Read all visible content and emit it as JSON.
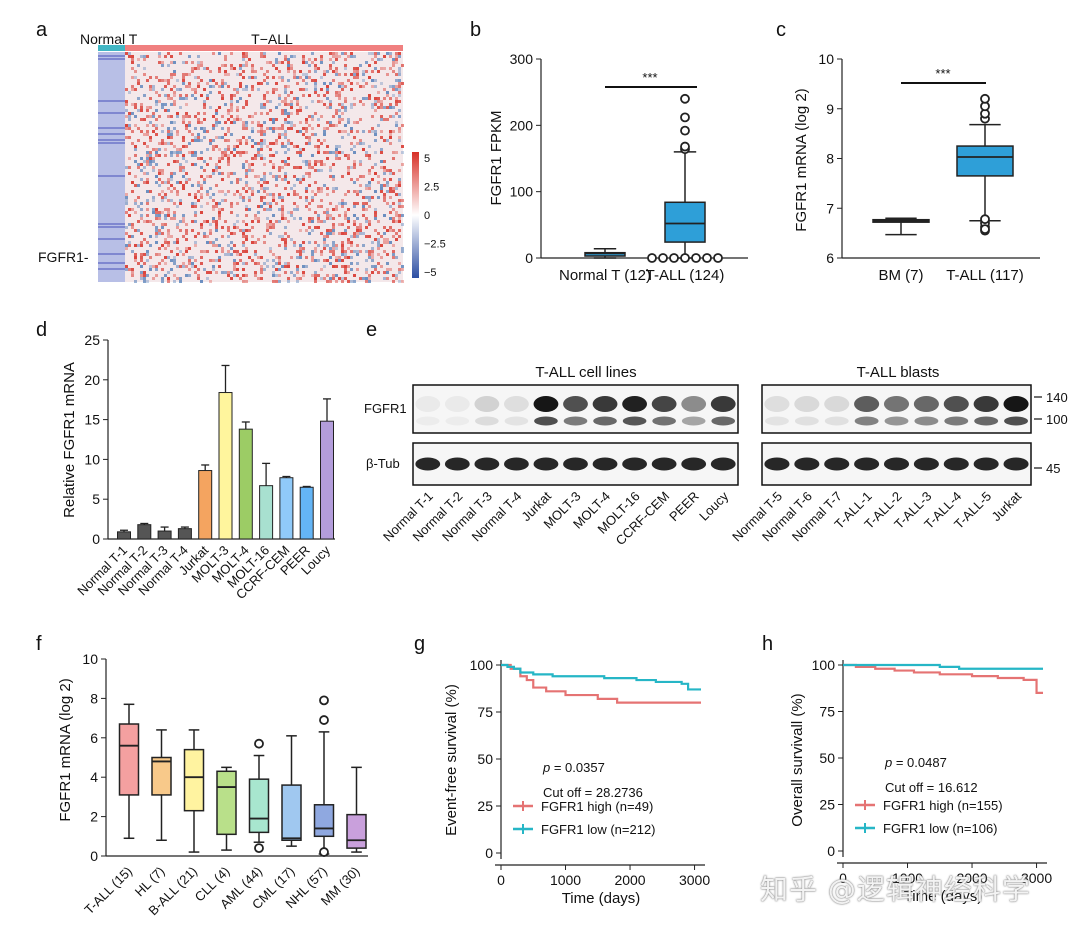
{
  "watermark": "知乎 @逻辑神经科学",
  "chart_data": [
    {
      "panel": "a",
      "type": "heatmap",
      "group_labels": [
        "Normal T",
        "T−ALL"
      ],
      "group_colors": [
        "#41b6c4",
        "#f08080"
      ],
      "row_label": "FGFR1-",
      "colorbar_ticks": [
        "5",
        "2.5",
        "0",
        "−2.5",
        "−5"
      ],
      "colorbar_range": [
        -5,
        5
      ]
    },
    {
      "panel": "b",
      "type": "box",
      "ylabel": "FGFR1 FPKM",
      "ylim": [
        0,
        300
      ],
      "yticks": [
        0,
        100,
        200,
        300
      ],
      "significance": "***",
      "groups": [
        {
          "label": "Normal T (12)",
          "min": 0,
          "q1": 3,
          "median": 7,
          "q3": 8,
          "max": 14,
          "outliers": []
        },
        {
          "label": "T-ALL (124)",
          "min": 0,
          "q1": 24,
          "median": 52,
          "q3": 84,
          "max": 160,
          "outliers": [
            164,
            168,
            192,
            212,
            240,
            0,
            0,
            0,
            0,
            0,
            0,
            0
          ]
        }
      ]
    },
    {
      "panel": "c",
      "type": "box",
      "ylabel": "FGFR1 mRNA (log 2)",
      "ylim": [
        6,
        10
      ],
      "yticks": [
        6,
        7,
        8,
        9,
        10
      ],
      "significance": "***",
      "groups": [
        {
          "label": "BM (7)",
          "min": 6.47,
          "q1": 6.72,
          "median": 6.75,
          "q3": 6.77,
          "max": 6.8,
          "outliers": []
        },
        {
          "label": "T-ALL (117)",
          "min": 6.75,
          "q1": 7.65,
          "median": 8.03,
          "q3": 8.25,
          "max": 8.68,
          "outliers": [
            8.8,
            8.9,
            9.05,
            9.2,
            6.55,
            6.62,
            6.7,
            6.58,
            6.78
          ]
        }
      ]
    },
    {
      "panel": "d",
      "type": "bar",
      "ylabel": "Relative FGFR1 mRNA",
      "ylim": [
        0,
        25
      ],
      "yticks": [
        0,
        5,
        10,
        15,
        20,
        25
      ],
      "categories": [
        "Normal T-1",
        "Normal T-2",
        "Normal T-3",
        "Normal T-4",
        "Jurkat",
        "MOLT-3",
        "MOLT-4",
        "MOLT-16",
        "CCRF-CEM",
        "PEER",
        "Loucy"
      ],
      "values": [
        0.9,
        1.8,
        1.0,
        1.3,
        8.6,
        18.4,
        13.8,
        6.7,
        7.7,
        6.5,
        14.8
      ],
      "errors": [
        0.2,
        0.15,
        0.5,
        0.2,
        0.7,
        3.4,
        0.9,
        2.8,
        0.15,
        0.1,
        2.8
      ],
      "colors": [
        "#555555",
        "#555555",
        "#555555",
        "#555555",
        "#f4a460",
        "#fff59d",
        "#9ccc65",
        "#a8e0d0",
        "#90caf9",
        "#64b5f6",
        "#b39ddb"
      ]
    },
    {
      "panel": "e",
      "type": "blot",
      "group1_title": "T-ALL cell lines",
      "group2_title": "T-ALL blasts",
      "row_labels": [
        "FGFR1",
        "β-Tub"
      ],
      "size_markers": [
        "140",
        "100",
        "45"
      ],
      "lanes1": [
        "Normal T-1",
        "Normal T-2",
        "Normal T-3",
        "Normal T-4",
        "Jurkat",
        "MOLT-3",
        "MOLT-4",
        "MOLT-16",
        "CCRF-CEM",
        "PEER",
        "Loucy"
      ],
      "lanes2": [
        "Normal T-5",
        "Normal T-6",
        "Normal T-7",
        "T-ALL-1",
        "T-ALL-2",
        "T-ALL-3",
        "T-ALL-4",
        "T-ALL-5",
        "Jurkat"
      ],
      "fgfr1_intensity1": [
        0.05,
        0.05,
        0.15,
        0.1,
        0.95,
        0.7,
        0.8,
        0.9,
        0.75,
        0.45,
        0.8
      ],
      "fgfr1_intensity2": [
        0.1,
        0.12,
        0.12,
        0.65,
        0.55,
        0.6,
        0.7,
        0.8,
        0.95
      ]
    },
    {
      "panel": "f",
      "type": "box",
      "ylabel": "FGFR1 mRNA (log 2)",
      "ylim": [
        0,
        10
      ],
      "yticks": [
        0,
        2,
        4,
        6,
        8,
        10
      ],
      "groups": [
        {
          "label": "T-ALL (15)",
          "min": 0.9,
          "q1": 3.1,
          "median": 5.6,
          "q3": 6.7,
          "max": 7.7,
          "outliers": [],
          "color": "#f4a0a0"
        },
        {
          "label": "HL (7)",
          "min": 0.8,
          "q1": 3.1,
          "median": 4.8,
          "q3": 5.0,
          "max": 6.4,
          "outliers": [],
          "color": "#f8c98a"
        },
        {
          "label": "B-ALL (21)",
          "min": 0.2,
          "q1": 2.3,
          "median": 4.0,
          "q3": 5.4,
          "max": 6.4,
          "outliers": [],
          "color": "#fff3a0"
        },
        {
          "label": "CLL (4)",
          "min": 0.3,
          "q1": 1.1,
          "median": 3.5,
          "q3": 4.3,
          "max": 4.5,
          "outliers": [],
          "color": "#b9e08a"
        },
        {
          "label": "AML (44)",
          "min": 0.7,
          "q1": 1.2,
          "median": 1.9,
          "q3": 3.9,
          "max": 5.1,
          "outliers": [
            5.7,
            0.4
          ],
          "color": "#a8e6cf"
        },
        {
          "label": "CML (17)",
          "min": 0.5,
          "q1": 0.8,
          "median": 0.9,
          "q3": 3.6,
          "max": 6.1,
          "outliers": [],
          "color": "#a0c8f0"
        },
        {
          "label": "NHL (57)",
          "min": 0.1,
          "q1": 1.0,
          "median": 1.4,
          "q3": 2.6,
          "max": 6.3,
          "outliers": [
            7.9,
            6.9,
            0.2
          ],
          "color": "#8fa8e0"
        },
        {
          "label": "MM (30)",
          "min": 0.2,
          "q1": 0.4,
          "median": 0.8,
          "q3": 2.1,
          "max": 4.5,
          "outliers": [],
          "color": "#c9a0dc"
        }
      ]
    },
    {
      "panel": "g",
      "type": "line",
      "ylabel": "Event-free survival (%)",
      "xlabel": "Time (days)",
      "xlim": [
        0,
        3100
      ],
      "ylim": [
        0,
        100
      ],
      "xticks": [
        0,
        1000,
        2000,
        3000
      ],
      "yticks": [
        0,
        25,
        50,
        75,
        100
      ],
      "annotations": [
        "p = 0.0357",
        "Cut off = 28.2736"
      ],
      "series": [
        {
          "name": "FGFR1 high (n=49)",
          "color": "#e57373",
          "x": [
            0,
            150,
            300,
            400,
            500,
            700,
            900,
            1000,
            1200,
            1500,
            1800,
            2200,
            3100
          ],
          "y": [
            100,
            98,
            94,
            92,
            88,
            86,
            86,
            84,
            84,
            82,
            80,
            80,
            80
          ]
        },
        {
          "name": "FGFR1 low (n=212)",
          "color": "#26b6c6",
          "x": [
            0,
            100,
            200,
            300,
            500,
            800,
            1200,
            1600,
            2100,
            2400,
            2800,
            2900,
            3100
          ],
          "y": [
            100,
            99,
            98,
            96,
            95,
            94,
            94,
            93,
            92,
            91,
            90,
            87,
            87
          ]
        }
      ]
    },
    {
      "panel": "h",
      "type": "line",
      "ylabel": "Overall survivall (%)",
      "xlabel": "Time (days)",
      "xlim": [
        0,
        3100
      ],
      "ylim": [
        0,
        100
      ],
      "xticks": [
        0,
        1000,
        2000,
        3000
      ],
      "yticks": [
        0,
        25,
        50,
        75,
        100
      ],
      "annotations": [
        "p = 0.0487",
        "Cut off = 16.612"
      ],
      "series": [
        {
          "name": "FGFR1 high (n=155)",
          "color": "#e57373",
          "x": [
            0,
            200,
            500,
            800,
            1100,
            1500,
            2000,
            2400,
            2800,
            3000,
            3100
          ],
          "y": [
            100,
            99,
            98,
            97,
            96,
            95,
            94,
            93,
            92,
            85,
            85
          ]
        },
        {
          "name": "FGFR1 low (n=106)",
          "color": "#26b6c6",
          "x": [
            0,
            500,
            1000,
            1500,
            1800,
            2500,
            3100
          ],
          "y": [
            100,
            100,
            100,
            99,
            98,
            98,
            98
          ]
        }
      ]
    }
  ]
}
